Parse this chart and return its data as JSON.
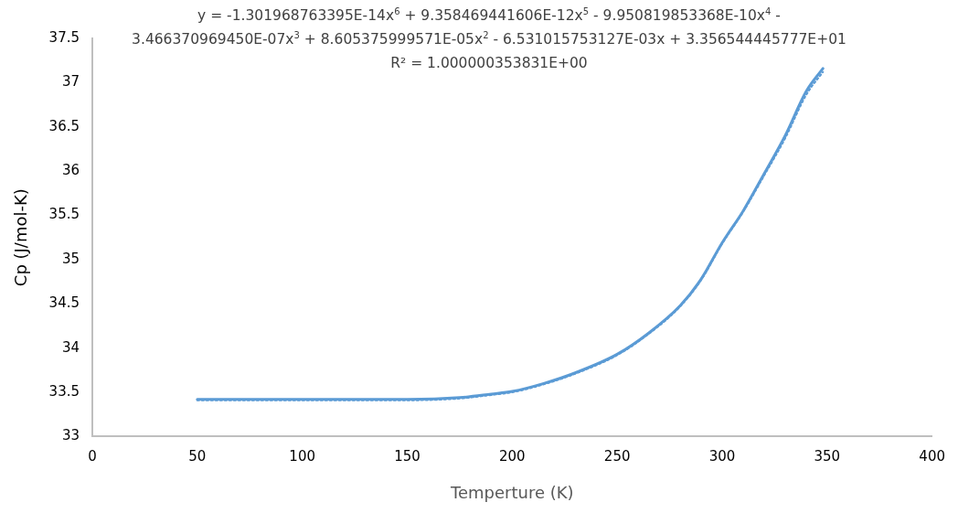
{
  "chart_data": {
    "type": "line",
    "xlabel": "Temperture (K)",
    "ylabel": "Cp (J/mol-K)",
    "annotations": [
      "y = -1.301968763395E-14x$^{6}$ + 9.358469441606E-12x$^{5}$ - 9.950819853368E-10x$^{4}$ - 3.466370969450E-07x$^{3}$ + 8.605375999571E-05x$^{2}$ - 6.531015753127E-03x + 3.356544445777E+01",
      "R² = 1.000000353831E+00"
    ],
    "xlim": [
      0,
      400
    ],
    "xticks": [
      0,
      50,
      100,
      150,
      200,
      250,
      300,
      350,
      400
    ],
    "ylim": [
      33,
      37.5
    ],
    "yticks": [
      33,
      33.5,
      34,
      34.5,
      35,
      35.5,
      36,
      36.5,
      37,
      37.5
    ],
    "grid": false,
    "marker": "none",
    "series": [
      {
        "type": "line",
        "color": "#5b9bd5",
        "line_style": "solid",
        "x": [
          50,
          75,
          100,
          125,
          150,
          175,
          190,
          200,
          215,
          230,
          250,
          265,
          280,
          290,
          300,
          310,
          320,
          330,
          340,
          348
        ],
        "values": [
          33.42,
          33.42,
          33.42,
          33.42,
          33.42,
          33.44,
          33.48,
          33.51,
          33.6,
          33.72,
          33.93,
          34.17,
          34.48,
          34.78,
          35.19,
          35.55,
          35.97,
          36.4,
          36.9,
          37.16
        ]
      },
      {
        "type": "line",
        "color": "#5b9bd5",
        "line_style": "dotted",
        "x": [
          50,
          75,
          100,
          125,
          150,
          175,
          190,
          200,
          215,
          230,
          250,
          265,
          280,
          290,
          300,
          310,
          320,
          330,
          340,
          348
        ],
        "values": [
          33.41,
          33.41,
          33.41,
          33.41,
          33.41,
          33.43,
          33.47,
          33.5,
          33.59,
          33.71,
          33.92,
          34.16,
          34.47,
          34.77,
          35.18,
          35.54,
          35.95,
          36.37,
          36.86,
          37.12
        ]
      }
    ]
  }
}
